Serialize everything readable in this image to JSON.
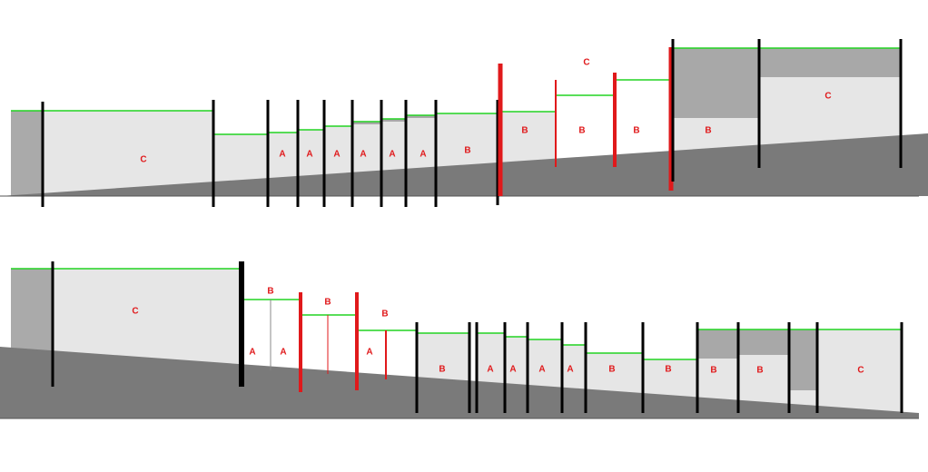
{
  "sections": [
    {
      "labels": [
        "C",
        "A",
        "A",
        "A",
        "A",
        "A",
        "A",
        "B",
        "B",
        "B",
        "B",
        "B",
        "C",
        "C"
      ]
    },
    {
      "labels": [
        "C",
        "B",
        "B",
        "B",
        "A",
        "A",
        "A",
        "B",
        "A",
        "A",
        "A",
        "A",
        "B",
        "B",
        "B",
        "B",
        "C"
      ]
    }
  ]
}
